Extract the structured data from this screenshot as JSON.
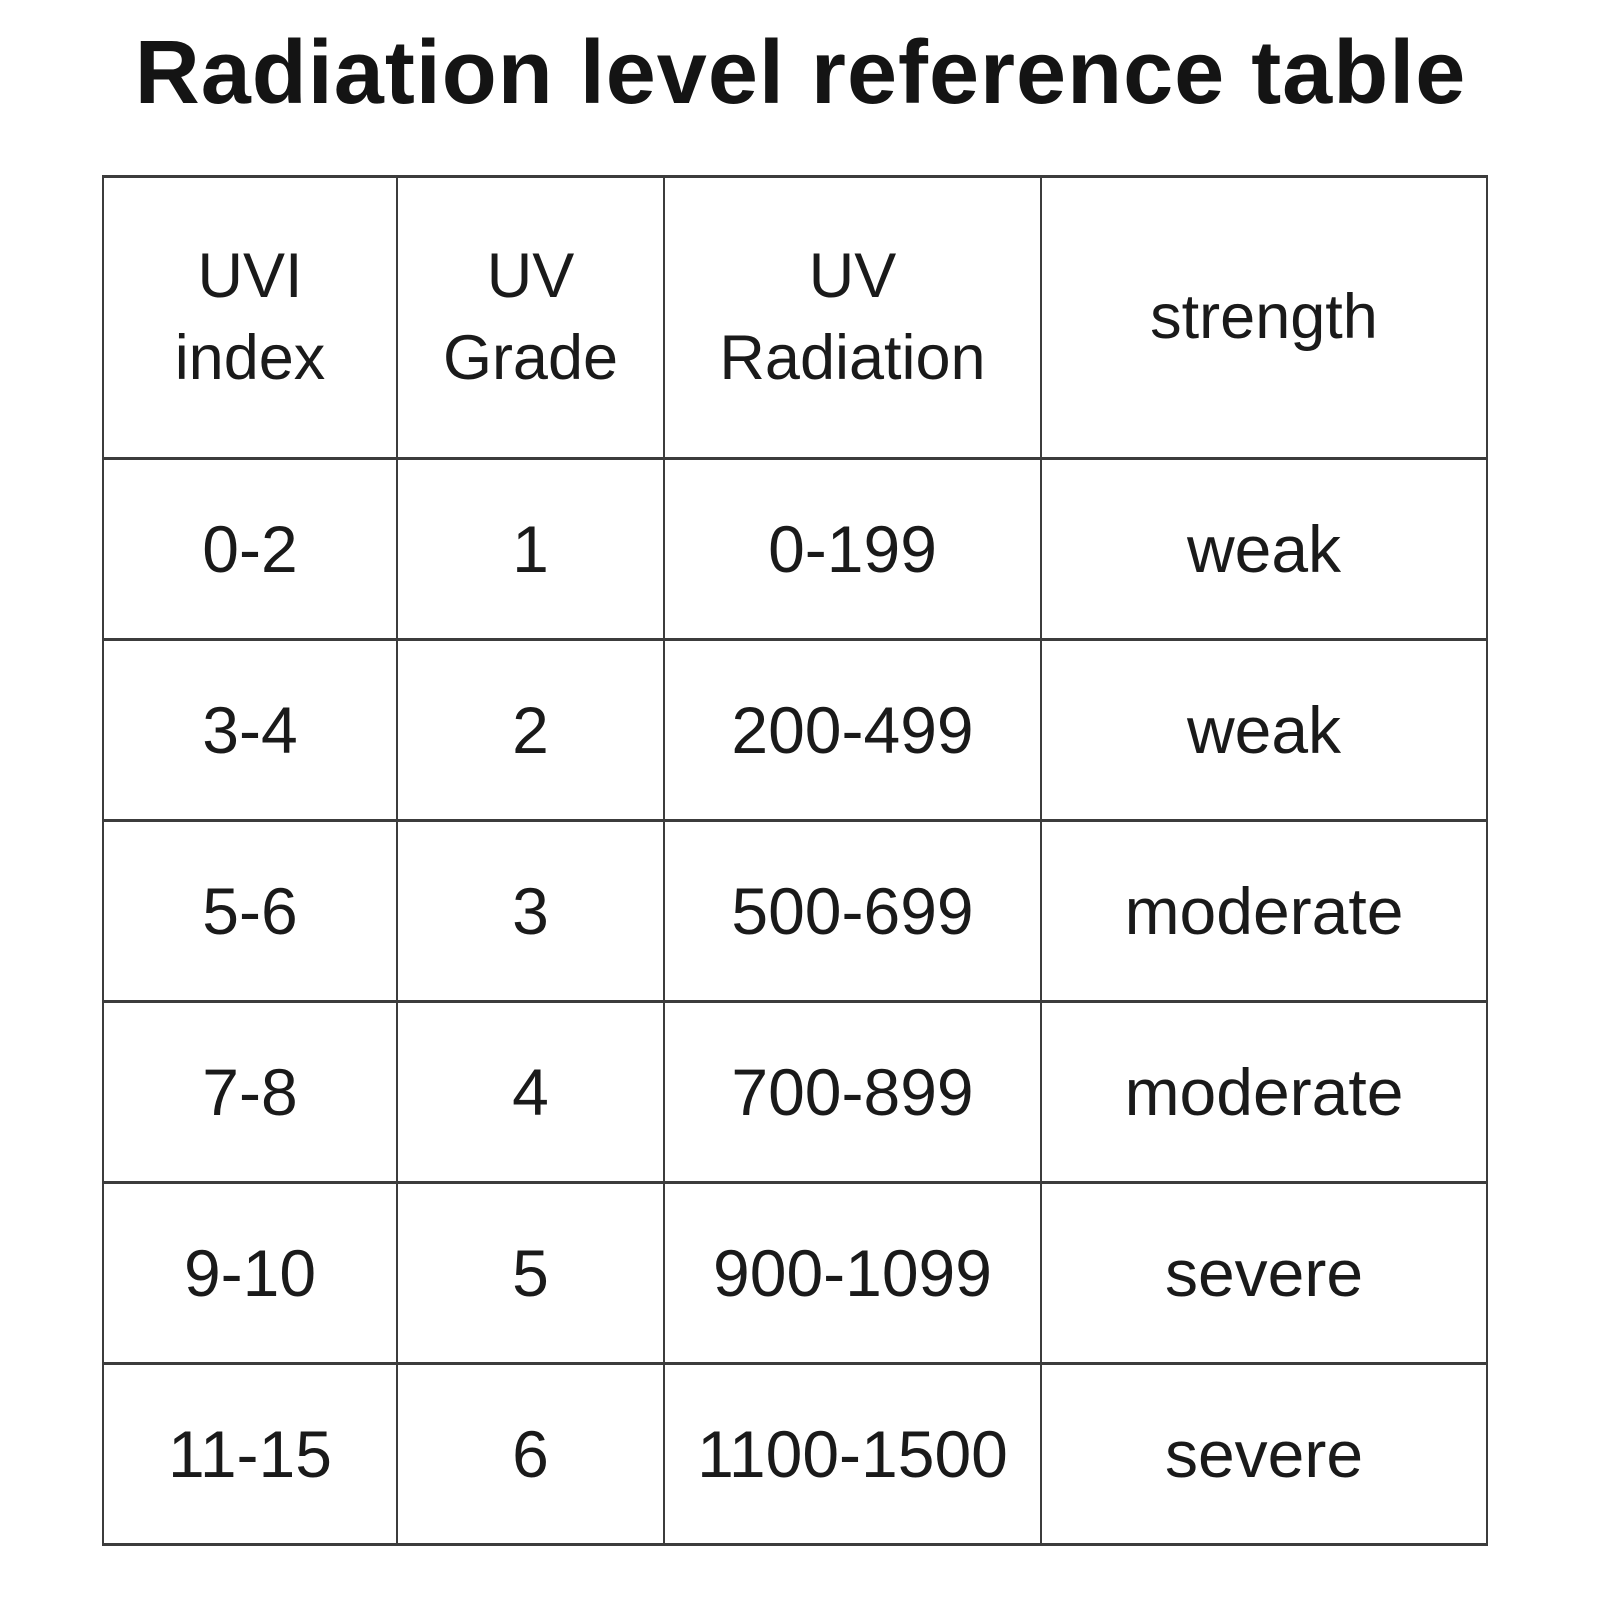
{
  "colors": {
    "background": "#ffffff",
    "text": "#1a1a1a",
    "border": "#3c3c3c"
  },
  "title": "Radiation level reference table",
  "table": {
    "headers": [
      "UVI\nindex",
      "UV\nGrade",
      "UV\nRadiation",
      "strength"
    ],
    "rows": [
      {
        "cells": [
          "0-2",
          "1",
          "0-199",
          "weak"
        ]
      },
      {
        "cells": [
          "3-4",
          "2",
          "200-499",
          "weak"
        ]
      },
      {
        "cells": [
          "5-6",
          "3",
          "500-699",
          "moderate"
        ]
      },
      {
        "cells": [
          "7-8",
          "4",
          "700-899",
          "moderate"
        ]
      },
      {
        "cells": [
          "9-10",
          "5",
          "900-1099",
          "severe"
        ]
      },
      {
        "cells": [
          "11-15",
          "6",
          "1100-1500",
          "severe"
        ]
      }
    ]
  }
}
